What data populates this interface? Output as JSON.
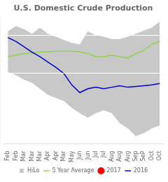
{
  "chart_data": {
    "type": "line",
    "title": "U.S. Domestic Crude Production",
    "categories": [
      "Feb",
      "Feb",
      "Mar",
      "Mar",
      "Mar",
      "Apr",
      "Apr",
      "Mar",
      "May",
      "Jun",
      "Jun",
      "Jul",
      "Jul",
      "Aug",
      "Aug",
      "Aug",
      "Sep",
      "SeP",
      "Oct",
      "Oct"
    ],
    "series": [
      {
        "name": "HiLo",
        "type": "band",
        "color": "#c8c8c8",
        "high": [
          9.05,
          9.12,
          9.08,
          9.02,
          9.1,
          9.02,
          8.98,
          8.94,
          8.9,
          8.88,
          9.05,
          9.0,
          8.98,
          8.95,
          8.95,
          8.98,
          9.02,
          9.06,
          9.1,
          9.18
        ],
        "low": [
          8.52,
          8.48,
          8.42,
          8.38,
          8.3,
          8.22,
          8.18,
          8.14,
          8.05,
          7.98,
          7.92,
          7.98,
          8.02,
          7.98,
          7.85,
          7.78,
          7.68,
          7.72,
          7.78,
          7.82
        ]
      },
      {
        "name": "5 Year Average",
        "color": "#92d050",
        "values": [
          8.72,
          8.74,
          8.76,
          8.77,
          8.78,
          8.78,
          8.79,
          8.79,
          8.79,
          8.78,
          8.76,
          8.72,
          8.72,
          8.74,
          8.72,
          8.7,
          8.76,
          8.8,
          8.88,
          8.92
        ]
      },
      {
        "name": "2017",
        "color": "#ff0000",
        "marker": "circle",
        "values": [
          null,
          null,
          null,
          null,
          null,
          null,
          null,
          null,
          null,
          null,
          null,
          null,
          null,
          null,
          null,
          null,
          null,
          null,
          null,
          null
        ]
      },
      {
        "name": "2016",
        "color": "#0000cd",
        "values": [
          8.97,
          8.92,
          8.85,
          8.78,
          8.72,
          8.65,
          8.58,
          8.5,
          8.35,
          8.25,
          8.3,
          8.32,
          8.3,
          8.32,
          8.34,
          8.32,
          8.33,
          8.34,
          8.35,
          8.37
        ]
      }
    ],
    "ylim": [
      7.58,
      9.23
    ],
    "yticks": [
      8.5,
      9.0
    ],
    "grid": true,
    "tick_labels": "x",
    "legend": "bottom"
  }
}
